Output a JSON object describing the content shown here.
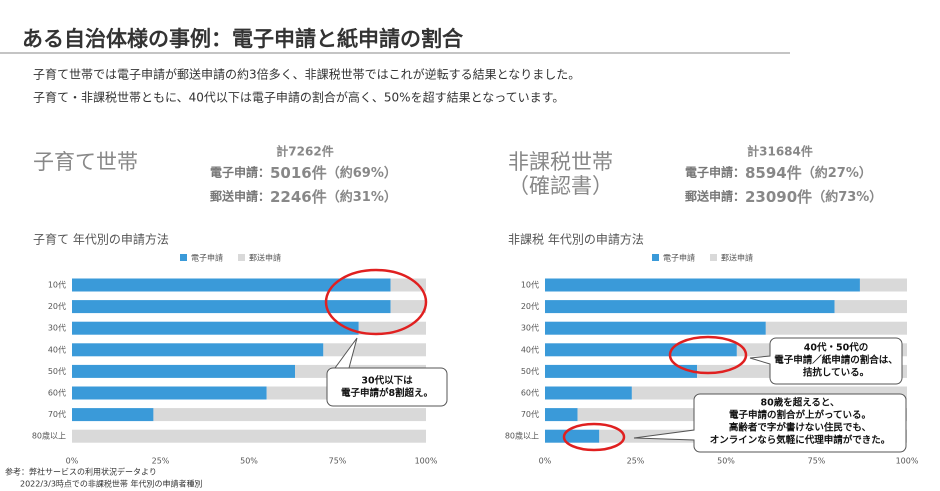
{
  "header": {
    "title": "ある自治体様の事例：電子申請と紙申請の割合",
    "lines": [
      "子育て世帯では電子申請が郵送申請の約3倍多く、非課税世帯ではこれが逆転する結果となりました。",
      "子育て・非課税世帯ともに、40代以下は電子申請の割合が高く、50%を超す結果となっています。"
    ]
  },
  "summaries": [
    {
      "title": [
        "子育て世帯"
      ],
      "total": "計7262件",
      "rows": [
        {
          "label": "電子申請：",
          "count": "5016件",
          "share": "（約69%）"
        },
        {
          "label": "郵送申請：",
          "count": "2246件",
          "share": "（約31%）"
        }
      ]
    },
    {
      "title": [
        "非課税世帯",
        "（確認書）"
      ],
      "total": "計31684件",
      "rows": [
        {
          "label": "電子申請：",
          "count": "8594件",
          "share": "（約27%）"
        },
        {
          "label": "郵送申請：",
          "count": "23090件",
          "share": "（約73%）"
        }
      ]
    }
  ],
  "chart_data": [
    {
      "type": "bar",
      "orientation": "horizontal",
      "stacked": true,
      "title": "子育て 年代別の申請方法",
      "categories": [
        "10代",
        "20代",
        "30代",
        "40代",
        "50代",
        "60代",
        "70代",
        "80歳以上"
      ],
      "series": [
        {
          "name": "電子申請",
          "color": "#3a9ad9",
          "values": [
            90,
            90,
            81,
            71,
            63,
            55,
            23,
            0
          ]
        },
        {
          "name": "郵送申請",
          "color": "#d9d9d9",
          "values": [
            10,
            10,
            19,
            29,
            37,
            45,
            77,
            100
          ]
        }
      ],
      "xlim": [
        0,
        100
      ],
      "xticks": [
        {
          "value": 0,
          "label": "0%"
        },
        {
          "value": 25,
          "label": "25%"
        },
        {
          "value": 50,
          "label": "50%"
        },
        {
          "value": 75,
          "label": "75%"
        },
        {
          "value": 100,
          "label": "100%"
        }
      ],
      "annotations": [
        {
          "lines": [
            "30代以下は",
            "電子申請が8割超え。"
          ]
        }
      ]
    },
    {
      "type": "bar",
      "orientation": "horizontal",
      "stacked": true,
      "title": "非課税 年代別の申請方法",
      "categories": [
        "10代",
        "20代",
        "30代",
        "40代",
        "50代",
        "60代",
        "70代",
        "80歳以上"
      ],
      "series": [
        {
          "name": "電子申請",
          "color": "#3a9ad9",
          "values": [
            87,
            80,
            61,
            53,
            42,
            24,
            9,
            15
          ]
        },
        {
          "name": "郵送申請",
          "color": "#d9d9d9",
          "values": [
            13,
            20,
            39,
            47,
            58,
            76,
            91,
            85
          ]
        }
      ],
      "xlim": [
        0,
        100
      ],
      "xticks": [
        {
          "value": 0,
          "label": "0%"
        },
        {
          "value": 25,
          "label": "25%"
        },
        {
          "value": 50,
          "label": "50%"
        },
        {
          "value": 75,
          "label": "75%"
        },
        {
          "value": 100,
          "label": "100%"
        }
      ],
      "annotations": [
        {
          "lines": [
            "40代・50代の",
            "電子申請／紙申請の割合は、",
            "拮抗している。"
          ]
        },
        {
          "lines": [
            "80歳を超えると、",
            "電子申請の割合が上がっている。",
            "高齢者で字が書けない住民でも、",
            "オンラインなら気軽に代理申請ができた。"
          ]
        }
      ]
    }
  ],
  "footnote": [
    "参考：弊社サービスの利用状況データより",
    "2022/3/3時点での非課税世帯 年代別の申請者種別"
  ]
}
